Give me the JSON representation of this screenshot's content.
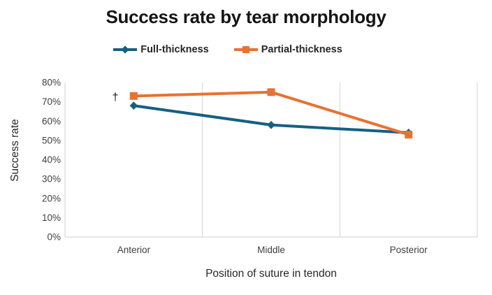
{
  "title": "Success rate by tear morphology",
  "legend": {
    "items": [
      {
        "label": "Full-thickness"
      },
      {
        "label": "Partial-thickness"
      }
    ]
  },
  "chart_data": {
    "type": "line",
    "categories": [
      "Anterior",
      "Middle",
      "Posterior"
    ],
    "series": [
      {
        "name": "Full-thickness",
        "marker": "diamond",
        "color": "#156082",
        "values": [
          68,
          58,
          54
        ]
      },
      {
        "name": "Partial-thickness",
        "marker": "square",
        "color": "#E97132",
        "values": [
          73,
          75,
          53
        ]
      }
    ],
    "title": "Success rate by tear morphology",
    "xlabel": "Position of suture in tendon",
    "ylabel": "Success rate",
    "ylim": [
      0,
      80
    ],
    "ytick_labels": [
      "0%",
      "10%",
      "20%",
      "30%",
      "40%",
      "50%",
      "60%",
      "70%",
      "80%"
    ],
    "grid": "vertical-category-gridlines-only",
    "legend_position": "top",
    "annotation": {
      "text": "†",
      "near": "Anterior Partial-thickness point"
    }
  },
  "colors": {
    "series_full_thickness": "#156082",
    "series_partial_thickness": "#E97132",
    "gridline": "#D9D9D9",
    "tick_text": "#3f3f3f",
    "title_text": "#151515"
  }
}
